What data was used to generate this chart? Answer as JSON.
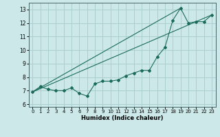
{
  "xlabel": "Humidex (Indice chaleur)",
  "bg_color": "#cce8e8",
  "grid_color": "#aacfcf",
  "line_color": "#1a6b5a",
  "xlim": [
    -0.5,
    23.5
  ],
  "ylim": [
    5.8,
    13.5
  ],
  "yticks": [
    6,
    7,
    8,
    9,
    10,
    11,
    12,
    13
  ],
  "xticks": [
    0,
    1,
    2,
    3,
    4,
    5,
    6,
    7,
    8,
    9,
    10,
    11,
    12,
    13,
    14,
    15,
    16,
    17,
    18,
    19,
    20,
    21,
    22,
    23
  ],
  "line1_x": [
    0,
    1,
    2,
    3,
    4,
    5,
    6,
    7,
    8,
    9,
    10,
    11,
    12,
    13,
    14,
    15,
    16,
    17,
    18,
    19,
    20,
    21,
    22,
    23
  ],
  "line1_y": [
    6.9,
    7.3,
    7.1,
    7.0,
    7.0,
    7.2,
    6.8,
    6.6,
    7.5,
    7.7,
    7.7,
    7.8,
    8.1,
    8.3,
    8.5,
    8.5,
    9.5,
    10.2,
    12.2,
    13.1,
    12.0,
    12.1,
    12.1,
    12.6
  ],
  "line2_x": [
    0,
    23
  ],
  "line2_y": [
    6.9,
    12.6
  ],
  "line3_x": [
    0,
    19
  ],
  "line3_y": [
    6.9,
    13.1
  ]
}
